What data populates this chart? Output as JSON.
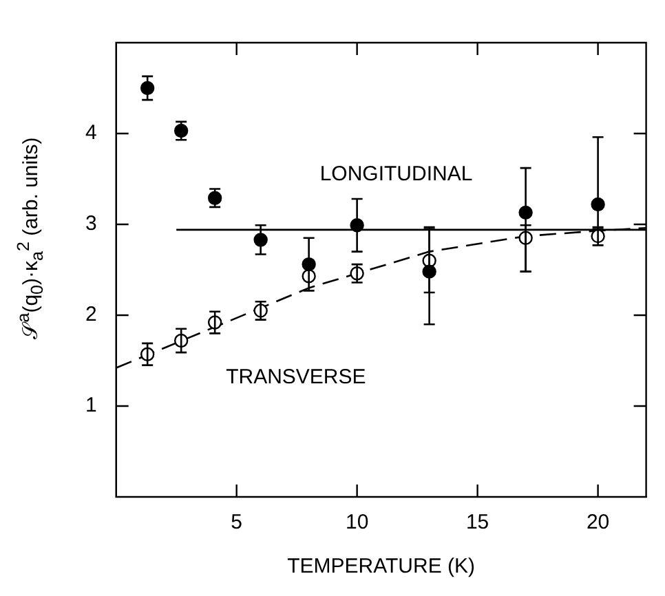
{
  "chart_data": {
    "type": "scatter",
    "xlabel": "TEMPERATURE (K)",
    "ylabel": "𝒮$^{a}$(q$_{0}$)·κ$_{a}$$^{2}$  (arb. units)",
    "xlim": [
      0,
      22
    ],
    "ylim": [
      0,
      5
    ],
    "xticks": [
      5,
      10,
      15,
      20
    ],
    "yticks": [
      1,
      2,
      3,
      4
    ],
    "grid": false,
    "legend": false,
    "series": [
      {
        "name": "LONGITUDINAL",
        "color": "#000000",
        "marker": "circle",
        "x": [
          1.3,
          2.7,
          4.1,
          6,
          8,
          10,
          13,
          17,
          20
        ],
        "values": [
          4.5,
          4.03,
          3.29,
          2.83,
          2.56,
          2.99,
          2.48,
          3.13,
          3.22
        ],
        "errors": [
          0.13,
          0.1,
          0.1,
          0.16,
          [
            2.56,
            2.85
          ],
          0.29,
          [
            1.9,
            2.97
          ],
          [
            2.48,
            3.62
          ],
          [
            2.95,
            3.96
          ]
        ]
      },
      {
        "name": "TRANSVERSE",
        "color": "#000000",
        "marker": "circle",
        "x": [
          1.3,
          2.7,
          4.1,
          6,
          8,
          10,
          13,
          17,
          20
        ],
        "values": [
          1.57,
          1.72,
          1.92,
          2.05,
          2.43,
          2.46,
          2.6,
          2.85,
          2.87
        ],
        "errors": [
          0.12,
          0.13,
          0.12,
          0.1,
          0.16,
          0.1,
          0.35,
          [
            2.48,
            2.99
          ],
          0.1
        ]
      },
      {
        "type": "line",
        "color": "#000000",
        "marker": "none",
        "line_style": "solid",
        "x": [
          2.5,
          22
        ],
        "values": [
          2.94,
          2.94
        ]
      },
      {
        "type": "line",
        "color": "#000000",
        "marker": "none",
        "line_style": "dashed",
        "x": [
          0,
          8,
          13,
          17,
          20,
          22
        ],
        "values": [
          1.42,
          2.3,
          2.7,
          2.87,
          2.93,
          2.96
        ]
      }
    ]
  }
}
